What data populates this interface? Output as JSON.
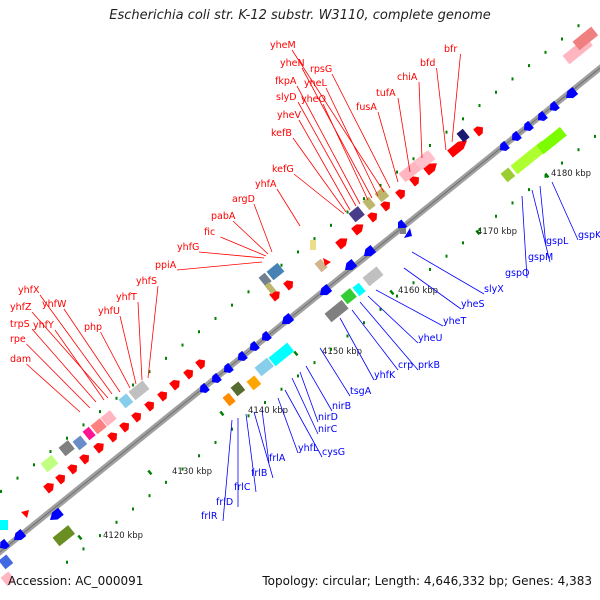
{
  "title": "Escherichia coli str. K-12 substr. W3110, complete genome",
  "footer": {
    "accession": "Accession: AC_000091",
    "summary": "Topology: circular; Length: 4,646,332 bp; Genes: 4,383"
  },
  "colors": {
    "forward": "#ff0000",
    "reverse": "#0000ff",
    "backbone": "#999999",
    "tick": "#008000"
  },
  "ticks": [
    {
      "label": "4120 kbp"
    },
    {
      "label": "4130 kbp"
    },
    {
      "label": "4140 kbp"
    },
    {
      "label": "4150 kbp"
    },
    {
      "label": "4160 kbp"
    },
    {
      "label": "4170 kbp"
    },
    {
      "label": "4180 kbp"
    }
  ],
  "forward_labels": [
    "dam",
    "rpe",
    "trpS",
    "yhfY",
    "yhfZ",
    "yhfX",
    "yhfW",
    "php",
    "yhfU",
    "yhfT",
    "yhfS",
    "ppiA",
    "yhfG",
    "fic",
    "pabA",
    "argD",
    "yhfA",
    "kefG",
    "kefB",
    "yheV",
    "slyD",
    "fkpA",
    "yheO",
    "yheN",
    "yheL",
    "yheM",
    "rpsG",
    "fusA",
    "tufA",
    "chiA",
    "bfd",
    "bfr"
  ],
  "reverse_labels": [
    "frlR",
    "frlD",
    "frlC",
    "frlB",
    "frlA",
    "yhfL",
    "cysG",
    "nirC",
    "nirD",
    "nirB",
    "tsgA",
    "yhfK",
    "crp",
    "prkB",
    "yheU",
    "yheT",
    "yheS",
    "slyX",
    "gspO",
    "gspM",
    "gspL",
    "gspK"
  ]
}
